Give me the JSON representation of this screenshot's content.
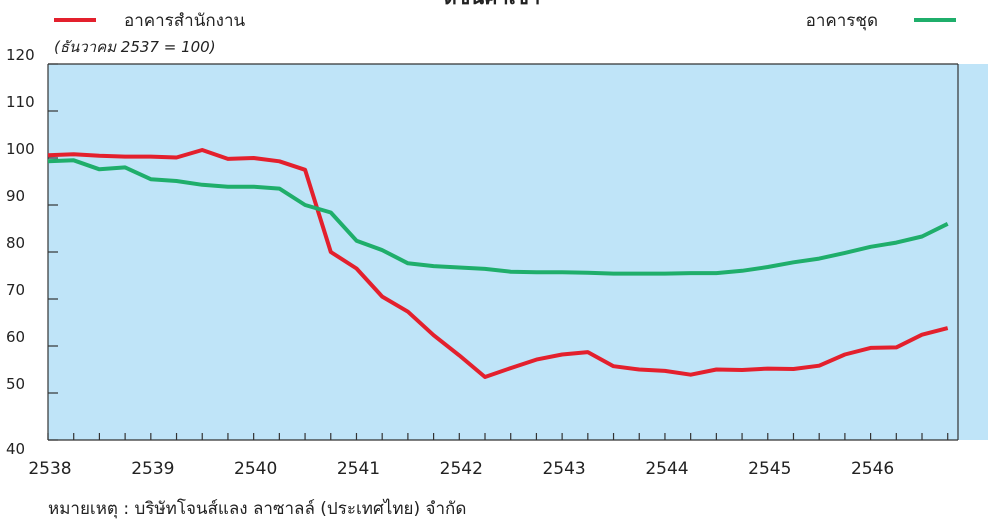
{
  "chart_data": {
    "type": "line",
    "title": "ดัชนีค่าเช่า",
    "subtitle": "(ธันวาคม 2537 = 100)",
    "ylim": [
      40,
      120
    ],
    "yticks": [
      40,
      50,
      60,
      70,
      80,
      90,
      100,
      110,
      120
    ],
    "xlim": [
      2538,
      2546.85
    ],
    "xticks": [
      "2538",
      "2539",
      "2540",
      "2541",
      "2542",
      "2543",
      "2544",
      "2545",
      "2546"
    ],
    "grid": false,
    "legend": [
      "top-left",
      "top-right"
    ],
    "series": [
      {
        "name": "อาคารสำนักงาน",
        "color": "#e3202d",
        "x": [
          2538.0,
          2538.25,
          2538.5,
          2538.75,
          2539.0,
          2539.25,
          2539.5,
          2539.75,
          2540.0,
          2540.25,
          2540.5,
          2540.75,
          2541.0,
          2541.25,
          2541.5,
          2541.75,
          2542.0,
          2542.25,
          2542.5,
          2542.75,
          2543.0,
          2543.25,
          2543.5,
          2543.75,
          2544.0,
          2544.25,
          2544.5,
          2544.75,
          2545.0,
          2545.25,
          2545.5,
          2545.75,
          2546.0,
          2546.25,
          2546.5,
          2546.75
        ],
        "values": [
          100.6,
          100.8,
          100.5,
          100.3,
          100.3,
          100.1,
          101.7,
          99.8,
          100.0,
          99.3,
          97.5,
          80.0,
          76.5,
          70.5,
          67.3,
          62.3,
          58.0,
          53.4,
          55.3,
          57.1,
          58.2,
          58.7,
          55.7,
          55.0,
          54.7,
          53.9,
          55.0,
          54.9,
          55.2,
          55.1,
          55.8,
          58.2,
          59.6,
          59.7,
          62.4,
          63.8
        ]
      },
      {
        "name": "อาคารชุด",
        "color": "#1fae6b",
        "x": [
          2538.0,
          2538.25,
          2538.5,
          2538.75,
          2539.0,
          2539.25,
          2539.5,
          2539.75,
          2540.0,
          2540.25,
          2540.5,
          2540.75,
          2541.0,
          2541.25,
          2541.5,
          2541.75,
          2542.0,
          2542.25,
          2542.5,
          2542.75,
          2543.0,
          2543.25,
          2543.5,
          2543.75,
          2544.0,
          2544.25,
          2544.5,
          2544.75,
          2545.0,
          2545.25,
          2545.5,
          2545.75,
          2546.0,
          2546.25,
          2546.5,
          2546.75
        ],
        "values": [
          99.3,
          99.5,
          97.6,
          98.0,
          95.5,
          95.1,
          94.3,
          93.9,
          93.9,
          93.5,
          90.0,
          88.4,
          82.4,
          80.4,
          77.6,
          77.0,
          76.7,
          76.4,
          75.8,
          75.7,
          75.7,
          75.6,
          75.4,
          75.4,
          75.4,
          75.5,
          75.5,
          76.0,
          76.8,
          77.8,
          78.6,
          79.8,
          81.1,
          82.0,
          83.3,
          86.0
        ]
      }
    ]
  },
  "footnote": "หมายเหตุ : บริษัทโจนส์แลง ลาซาลล์ (ประเทศไทย) จำกัด"
}
